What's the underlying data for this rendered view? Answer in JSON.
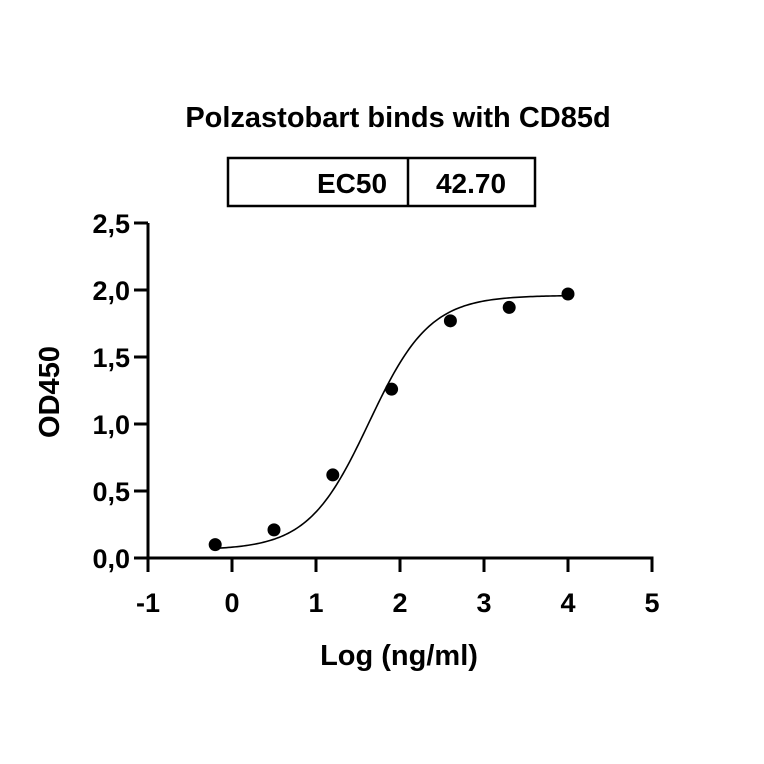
{
  "chart_data": {
    "type": "scatter",
    "title": "Polzastobart binds with CD85d",
    "xlabel": "Log (ng/ml)",
    "ylabel": "OD450",
    "xlim": [
      -1,
      5
    ],
    "ylim": [
      0,
      2.5
    ],
    "x_ticks": [
      "-1",
      "0",
      "1",
      "2",
      "3",
      "4",
      "5"
    ],
    "y_ticks": [
      "0,0",
      "0,5",
      "1,0",
      "1,5",
      "2,0",
      "2,5"
    ],
    "grid": false,
    "legend": "none",
    "series": [
      {
        "x": [
          -0.2,
          0.5,
          1.2,
          1.9,
          2.6,
          3.3,
          4.0
        ],
        "y": [
          0.1,
          0.21,
          0.62,
          1.26,
          1.77,
          1.87,
          1.97
        ],
        "fit": "4PL sigmoid",
        "color": "#000000"
      }
    ],
    "fit_params": {
      "bottom": 0.06,
      "top": 1.96,
      "logEC50": 1.63,
      "hill": 1.2
    },
    "ec50_table": {
      "label": "EC50",
      "value": "42.70"
    }
  }
}
